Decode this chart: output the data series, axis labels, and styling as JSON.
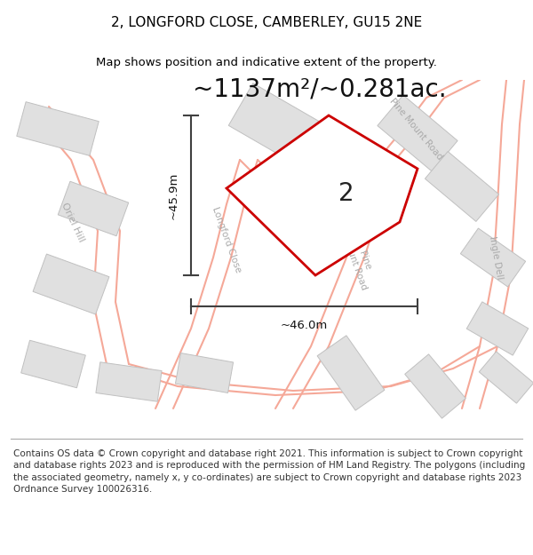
{
  "title": "2, LONGFORD CLOSE, CAMBERLEY, GU15 2NE",
  "subtitle": "Map shows position and indicative extent of the property.",
  "area_text": "~1137m²/~0.281ac.",
  "plot_number": "2",
  "footer": "Contains OS data © Crown copyright and database right 2021. This information is subject to Crown copyright and database rights 2023 and is reproduced with the permission of HM Land Registry. The polygons (including the associated geometry, namely x, y co-ordinates) are subject to Crown copyright and database rights 2023 Ordnance Survey 100026316.",
  "map_bg": "#ffffff",
  "plot_fill": "#ffffff",
  "plot_edge": "#cc0000",
  "dim_color": "#404040",
  "road_color": "#f5a898",
  "road_fill": "#ffffff",
  "building_color": "#e0e0e0",
  "building_edge": "#c0c0c0",
  "road_label_color": "#aaaaaa",
  "dim_width_label": "~46.0m",
  "dim_height_label": "~45.9m",
  "title_fontsize": 11,
  "subtitle_fontsize": 9.5,
  "area_fontsize": 20,
  "plot_num_fontsize": 20,
  "footer_fontsize": 7.5
}
